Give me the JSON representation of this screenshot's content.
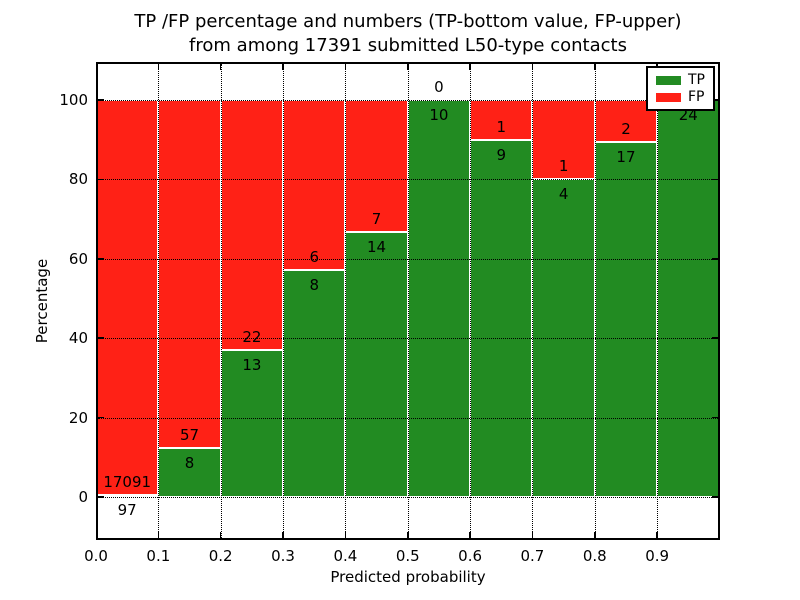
{
  "chart_data": {
    "type": "bar",
    "stacked": true,
    "normalized_to_percent": true,
    "title_line1": "TP /FP percentage and numbers (TP-bottom value, FP-upper)",
    "title_line2": "from among 17391 submitted L50-type contacts",
    "xlabel": "Predicted probability",
    "ylabel": "Percentage",
    "total_contacts": "17391",
    "bins": {
      "start": 0.0,
      "width": 0.1,
      "count": 10
    },
    "xtick_labels": [
      "0.0",
      "0.1",
      "0.2",
      "0.3",
      "0.4",
      "0.5",
      "0.6",
      "0.7",
      "0.8",
      "0.9"
    ],
    "ytick_values": [
      0,
      20,
      40,
      60,
      80,
      100
    ],
    "ytick_labels": [
      "0",
      "20",
      "40",
      "60",
      "80",
      "100"
    ],
    "xlim": [
      0.0,
      1.0
    ],
    "ylim": [
      -11,
      110
    ],
    "grid": "dotted-both-axes",
    "series": [
      {
        "name": "TP",
        "color": "#228B22",
        "values": [
          97,
          8,
          13,
          8,
          14,
          10,
          9,
          4,
          17,
          24
        ]
      },
      {
        "name": "FP",
        "color": "#ff2116",
        "values": [
          17091,
          57,
          22,
          6,
          7,
          0,
          1,
          1,
          2,
          0
        ]
      }
    ],
    "tp_percent": [
      0.56,
      12.31,
      37.14,
      57.14,
      66.67,
      100.0,
      90.0,
      80.0,
      89.47,
      100.0
    ],
    "legend": {
      "position": "upper-right",
      "entries": [
        {
          "label": "TP",
          "color": "#228B22"
        },
        {
          "label": "FP",
          "color": "#ff2116"
        }
      ]
    }
  }
}
